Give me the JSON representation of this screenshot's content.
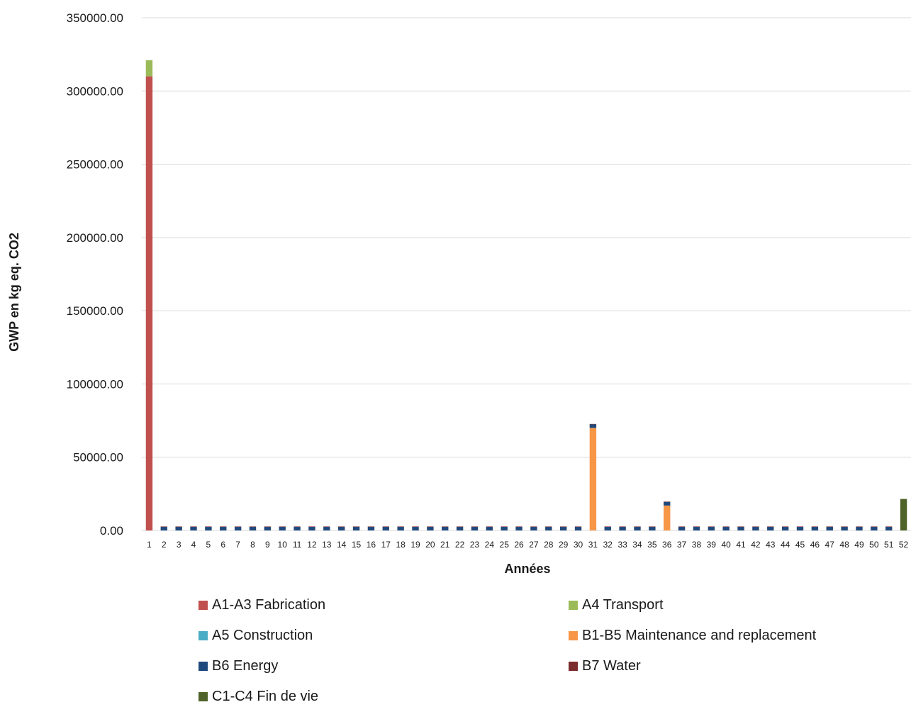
{
  "chart_data": {
    "type": "bar",
    "stacked": true,
    "title": "",
    "xlabel": "Années",
    "ylabel": "GWP en kg eq. CO2",
    "ylim": [
      0,
      350000
    ],
    "yticks": [
      0,
      50000,
      100000,
      150000,
      200000,
      250000,
      300000,
      350000
    ],
    "ytick_labels": [
      "0.00",
      "50000.00",
      "100000.00",
      "150000.00",
      "200000.00",
      "250000.00",
      "300000.00",
      "350000.00"
    ],
    "grid": true,
    "legend_position": "bottom",
    "categories": [
      "1",
      "2",
      "3",
      "4",
      "5",
      "6",
      "7",
      "8",
      "9",
      "10",
      "11",
      "12",
      "13",
      "14",
      "15",
      "16",
      "17",
      "18",
      "19",
      "20",
      "21",
      "22",
      "23",
      "24",
      "25",
      "26",
      "27",
      "28",
      "29",
      "30",
      "31",
      "32",
      "33",
      "34",
      "35",
      "36",
      "37",
      "38",
      "39",
      "40",
      "41",
      "42",
      "43",
      "44",
      "45",
      "46",
      "47",
      "48",
      "49",
      "50",
      "51",
      "52"
    ],
    "series": [
      {
        "name": "A1-A3 Fabrication",
        "color": "#c0504d",
        "values": [
          310000,
          0,
          0,
          0,
          0,
          0,
          0,
          0,
          0,
          0,
          0,
          0,
          0,
          0,
          0,
          0,
          0,
          0,
          0,
          0,
          0,
          0,
          0,
          0,
          0,
          0,
          0,
          0,
          0,
          0,
          0,
          0,
          0,
          0,
          0,
          0,
          0,
          0,
          0,
          0,
          0,
          0,
          0,
          0,
          0,
          0,
          0,
          0,
          0,
          0,
          0,
          0
        ]
      },
      {
        "name": "A4 Transport",
        "color": "#9bbb59",
        "values": [
          11000,
          0,
          0,
          0,
          0,
          0,
          0,
          0,
          0,
          0,
          0,
          0,
          0,
          0,
          0,
          0,
          0,
          0,
          0,
          0,
          0,
          0,
          0,
          0,
          0,
          0,
          0,
          0,
          0,
          0,
          0,
          0,
          0,
          0,
          0,
          0,
          0,
          0,
          0,
          0,
          0,
          0,
          0,
          0,
          0,
          0,
          0,
          0,
          0,
          0,
          0,
          0
        ]
      },
      {
        "name": "A5 Construction",
        "color": "#4bacc6",
        "values": [
          0,
          0,
          0,
          0,
          0,
          0,
          0,
          0,
          0,
          0,
          0,
          0,
          0,
          0,
          0,
          0,
          0,
          0,
          0,
          0,
          0,
          0,
          0,
          0,
          0,
          0,
          0,
          0,
          0,
          0,
          0,
          0,
          0,
          0,
          0,
          0,
          0,
          0,
          0,
          0,
          0,
          0,
          0,
          0,
          0,
          0,
          0,
          0,
          0,
          0,
          0,
          0
        ]
      },
      {
        "name": "B1-B5 Maintenance and replacement",
        "color": "#f79646",
        "values": [
          0,
          0,
          0,
          0,
          0,
          0,
          0,
          0,
          0,
          0,
          0,
          0,
          0,
          0,
          0,
          0,
          0,
          0,
          0,
          0,
          0,
          0,
          0,
          0,
          0,
          0,
          0,
          0,
          0,
          0,
          70000,
          0,
          0,
          0,
          0,
          17000,
          0,
          0,
          0,
          0,
          0,
          0,
          0,
          0,
          0,
          0,
          0,
          0,
          0,
          0,
          0,
          0
        ]
      },
      {
        "name": "B6 Energy",
        "color": "#1f497d",
        "values": [
          0,
          2400,
          2400,
          2400,
          2400,
          2400,
          2400,
          2400,
          2400,
          2400,
          2400,
          2400,
          2400,
          2400,
          2400,
          2400,
          2400,
          2400,
          2400,
          2400,
          2400,
          2400,
          2400,
          2400,
          2400,
          2400,
          2400,
          2400,
          2400,
          2400,
          2400,
          2400,
          2400,
          2400,
          2400,
          2400,
          2400,
          2400,
          2400,
          2400,
          2400,
          2400,
          2400,
          2400,
          2400,
          2400,
          2400,
          2400,
          2400,
          2400,
          2400,
          0
        ]
      },
      {
        "name": "B7 Water",
        "color": "#7b2c2c",
        "values": [
          0,
          300,
          300,
          300,
          300,
          300,
          300,
          300,
          300,
          300,
          300,
          300,
          300,
          300,
          300,
          300,
          300,
          300,
          300,
          300,
          300,
          300,
          300,
          300,
          300,
          300,
          300,
          300,
          300,
          300,
          300,
          300,
          300,
          300,
          300,
          300,
          300,
          300,
          300,
          300,
          300,
          300,
          300,
          300,
          300,
          300,
          300,
          300,
          300,
          300,
          300,
          0
        ]
      },
      {
        "name": "C1-C4 Fin de vie",
        "color": "#4f6228",
        "values": [
          0,
          0,
          0,
          0,
          0,
          0,
          0,
          0,
          0,
          0,
          0,
          0,
          0,
          0,
          0,
          0,
          0,
          0,
          0,
          0,
          0,
          0,
          0,
          0,
          0,
          0,
          0,
          0,
          0,
          0,
          0,
          0,
          0,
          0,
          0,
          0,
          0,
          0,
          0,
          0,
          0,
          0,
          0,
          0,
          0,
          0,
          0,
          0,
          0,
          0,
          0,
          21500
        ]
      }
    ]
  }
}
